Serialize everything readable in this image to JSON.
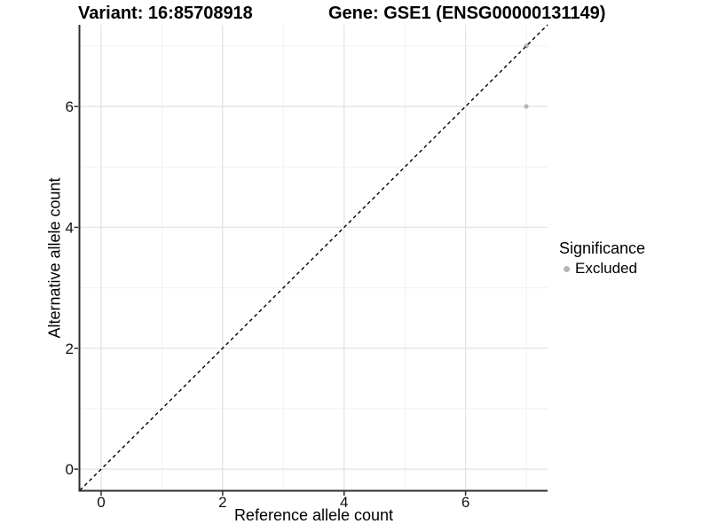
{
  "chart_data": {
    "type": "scatter",
    "title_left": "Variant: 16:85708918",
    "title_right": "Gene: GSE1 (ENSG00000131149)",
    "xlabel": "Reference allele count",
    "ylabel": "Alternative allele count",
    "xlim": [
      -0.35,
      7.35
    ],
    "ylim": [
      -0.35,
      7.35
    ],
    "x_ticks": [
      0,
      2,
      4,
      6
    ],
    "y_ticks": [
      0,
      2,
      4,
      6
    ],
    "x_minor_ticks": [
      1,
      3,
      5,
      7
    ],
    "y_minor_ticks": [
      1,
      3,
      5,
      7
    ],
    "grid": true,
    "points": [
      {
        "x": 7,
        "y": 7,
        "series": "Excluded"
      },
      {
        "x": 7,
        "y": 6,
        "series": "Excluded"
      }
    ],
    "reference_line": {
      "kind": "identity",
      "slope": 1,
      "intercept": 0,
      "style": "dashed",
      "color": "#000000"
    },
    "legend": {
      "title": "Significance",
      "position": "right",
      "entries": [
        {
          "label": "Excluded",
          "color": "#b5b5b5"
        }
      ]
    },
    "colors": {
      "point": "#b5b5b5",
      "grid_major": "#e3e3e3",
      "grid_minor": "#f0f0f0",
      "axis_line": "#2e2e2e",
      "tick_text": "#111111",
      "background": "#ffffff"
    }
  }
}
